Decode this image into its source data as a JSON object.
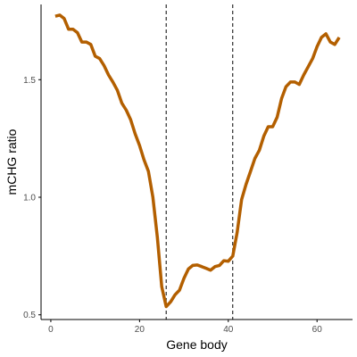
{
  "colors": {
    "line": "#b35f00",
    "axis": "#000000",
    "vline": "#000000",
    "tick_text": "#4d4d4d"
  },
  "chart_data": {
    "type": "line",
    "xlabel": "Gene body",
    "ylabel": "mCHG ratio",
    "xlim": [
      -2.2,
      68
    ],
    "ylim": [
      0.48,
      1.82
    ],
    "x_ticks": [
      0,
      20,
      40,
      60
    ],
    "x_tick_labels": [
      "0",
      "20",
      "40",
      "60"
    ],
    "y_ticks": [
      0.5,
      1.0,
      1.5
    ],
    "y_tick_labels": [
      "0.5",
      "1.0",
      "1.5"
    ],
    "grid": false,
    "vlines": [
      26,
      41
    ],
    "series": [
      {
        "x": [
          1,
          2,
          3,
          4,
          5,
          6,
          7,
          8,
          9,
          10,
          11,
          12,
          13,
          14,
          15,
          16,
          17,
          18,
          19,
          20,
          21,
          22,
          23,
          24,
          25,
          26,
          27,
          28,
          29,
          30,
          31,
          32,
          33,
          34,
          35,
          36,
          37,
          38,
          39,
          40,
          41,
          42,
          43,
          44,
          45,
          46,
          47,
          48,
          49,
          50,
          51,
          52,
          53,
          54,
          55,
          56,
          57,
          58,
          59,
          60,
          61,
          62,
          63,
          64,
          65
        ],
        "values": [
          1.77,
          1.775,
          1.76,
          1.715,
          1.715,
          1.7,
          1.66,
          1.66,
          1.65,
          1.6,
          1.59,
          1.56,
          1.52,
          1.49,
          1.455,
          1.4,
          1.37,
          1.33,
          1.27,
          1.22,
          1.16,
          1.11,
          1.0,
          0.83,
          0.62,
          0.535,
          0.555,
          0.585,
          0.605,
          0.655,
          0.695,
          0.71,
          0.712,
          0.705,
          0.698,
          0.69,
          0.705,
          0.71,
          0.73,
          0.728,
          0.75,
          0.85,
          0.99,
          1.055,
          1.11,
          1.165,
          1.2,
          1.26,
          1.3,
          1.3,
          1.34,
          1.42,
          1.47,
          1.49,
          1.49,
          1.48,
          1.52,
          1.555,
          1.59,
          1.64,
          1.68,
          1.695,
          1.66,
          1.65,
          1.68
        ]
      }
    ]
  }
}
